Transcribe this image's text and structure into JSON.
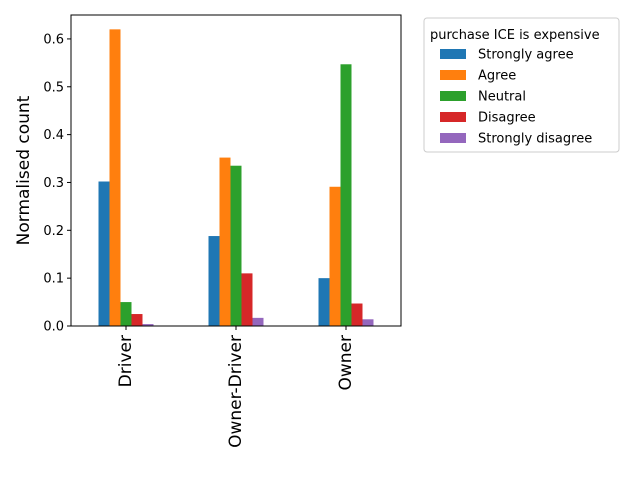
{
  "chart_data": {
    "type": "bar",
    "title": "",
    "xlabel": "",
    "ylabel": "Normalised count",
    "categories": [
      "Driver",
      "Owner-Driver",
      "Owner"
    ],
    "ylim": [
      0,
      0.65
    ],
    "yticks": [
      0.0,
      0.1,
      0.2,
      0.3,
      0.4,
      0.5,
      0.6
    ],
    "ytick_labels": [
      "0.0",
      "0.1",
      "0.2",
      "0.3",
      "0.4",
      "0.5",
      "0.6"
    ],
    "grid": false,
    "legend": {
      "title": "purchase ICE is expensive",
      "placement": "outside-right-top"
    },
    "series": [
      {
        "name": "Strongly agree",
        "color": "#1f77b4",
        "values": [
          0.302,
          0.188,
          0.1
        ]
      },
      {
        "name": "Agree",
        "color": "#ff7f0e",
        "values": [
          0.62,
          0.352,
          0.291
        ]
      },
      {
        "name": "Neutral",
        "color": "#2ca02c",
        "values": [
          0.05,
          0.335,
          0.547
        ]
      },
      {
        "name": "Disagree",
        "color": "#d62728",
        "values": [
          0.025,
          0.11,
          0.047
        ]
      },
      {
        "name": "Strongly disagree",
        "color": "#9467bd",
        "values": [
          0.004,
          0.017,
          0.014
        ]
      }
    ]
  }
}
